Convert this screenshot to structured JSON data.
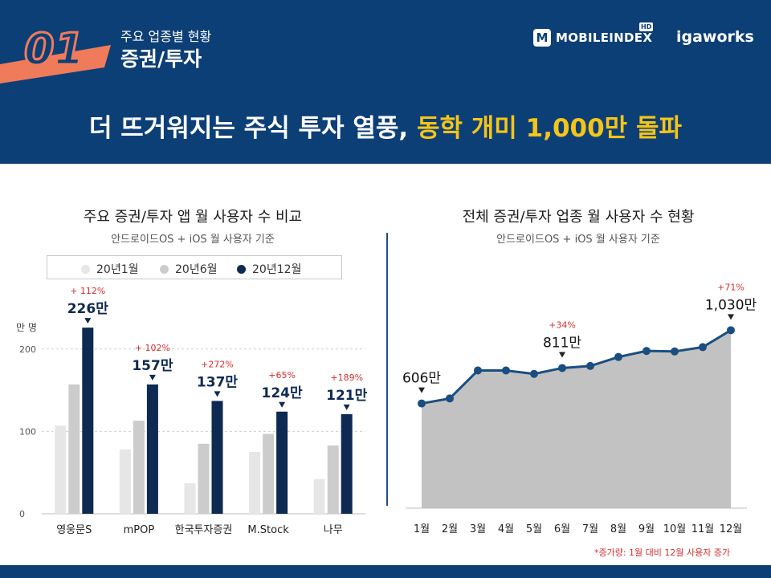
{
  "header": {
    "section_number": "01",
    "subtitle": "주요 업종별 현황",
    "title": "증권/투자",
    "brand1_name": "MOBILEINDEX",
    "brand1_badge": "HD",
    "brand2_name": "igaworks"
  },
  "headline": {
    "part1": "더 뜨거워지는 주식 투자 열풍, ",
    "part2": "동학 개미 1,000만 돌파"
  },
  "left_panel": {
    "title": "주요 증권/투자 앱 월 사용자 수 비교",
    "subtitle": "안드로이드OS + iOS 월 사용자 기준",
    "unit": "만 명",
    "legend": [
      "20년1월",
      "20년6월",
      "20년12월"
    ]
  },
  "right_panel": {
    "title": "전체 증권/투자 업종 월 사용자 수 현황",
    "subtitle": "안드로이드OS + iOS 월 사용자 기준"
  },
  "footnote": "*증가량: 1월 대비 12월 사용자 증가",
  "colors": {
    "header_bg": "#0d3f77",
    "accent_orange": "#f07b5a",
    "highlight_yellow": "#f5c518",
    "bar_jan": "#e6e6e6",
    "bar_jun": "#cccccc",
    "bar_dec": "#0e2a52",
    "line": "#1a4e80",
    "area": "#c2c2c2",
    "increase_red": "#d32f2f"
  },
  "chart_data": [
    {
      "type": "bar",
      "categories": [
        "영웅문S",
        "mPOP",
        "한국투자증권",
        "M.Stock",
        "나무"
      ],
      "series": [
        {
          "name": "20년1월",
          "values": [
            107,
            78,
            37,
            75,
            42
          ]
        },
        {
          "name": "20년6월",
          "values": [
            157,
            113,
            85,
            97,
            83
          ]
        },
        {
          "name": "20년12월",
          "values": [
            226,
            157,
            137,
            124,
            121
          ]
        }
      ],
      "value_labels": [
        "226만",
        "157만",
        "137만",
        "124만",
        "121만"
      ],
      "increase_labels": [
        "+ 112%",
        "+ 102%",
        "+272%",
        "+65%",
        "+189%"
      ],
      "yticks": [
        0,
        100,
        200
      ],
      "ylim": [
        0,
        230
      ],
      "ylabel": "만 명",
      "grid": true
    },
    {
      "type": "area",
      "categories": [
        "1월",
        "2월",
        "3월",
        "4월",
        "5월",
        "6월",
        "7월",
        "8월",
        "9월",
        "10월",
        "11월",
        "12월"
      ],
      "values": [
        606,
        635,
        797,
        797,
        777,
        811,
        823,
        875,
        910,
        907,
        932,
        1030
      ],
      "annotations": [
        {
          "index": 0,
          "label": "606만",
          "increase": ""
        },
        {
          "index": 5,
          "label": "811만",
          "increase": "+34%"
        },
        {
          "index": 11,
          "label": "1,030만",
          "increase": "+71%"
        }
      ],
      "ylim": [
        0,
        1380
      ],
      "grid": false
    }
  ]
}
